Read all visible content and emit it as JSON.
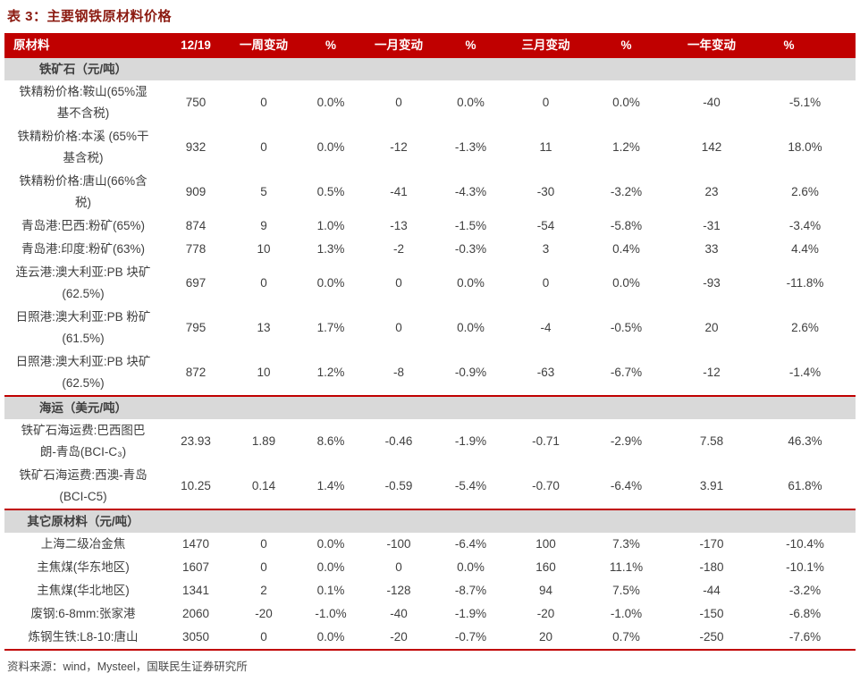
{
  "title": "表 3：主要钢铁原材料价格",
  "colors": {
    "header_red": "#C00000",
    "section_band_gray": "#D9D9D9",
    "title_dark_red": "#8B1A10",
    "body_text": "#404040"
  },
  "table": {
    "columns": [
      "原材料",
      "12/19",
      "一周变动",
      "%",
      "一月变动",
      "%",
      "三月变动",
      "%",
      "一年变动",
      "%"
    ],
    "sections": [
      {
        "name": "铁矿石（元/吨）",
        "rows": [
          {
            "label": "铁精粉价格:鞍山(65%湿\n基不含税)",
            "values": [
              "750",
              "0",
              "0.0%",
              "0",
              "0.0%",
              "0",
              "0.0%",
              "-40",
              "-5.1%"
            ]
          },
          {
            "label": "铁精粉价格:本溪 (65%干\n基含税)",
            "values": [
              "932",
              "0",
              "0.0%",
              "-12",
              "-1.3%",
              "11",
              "1.2%",
              "142",
              "18.0%"
            ]
          },
          {
            "label": "铁精粉价格:唐山(66%含\n税)",
            "values": [
              "909",
              "5",
              "0.5%",
              "-41",
              "-4.3%",
              "-30",
              "-3.2%",
              "23",
              "2.6%"
            ]
          },
          {
            "label": "青岛港:巴西:粉矿(65%)",
            "values": [
              "874",
              "9",
              "1.0%",
              "-13",
              "-1.5%",
              "-54",
              "-5.8%",
              "-31",
              "-3.4%"
            ]
          },
          {
            "label": "青岛港:印度:粉矿(63%)",
            "values": [
              "778",
              "10",
              "1.3%",
              "-2",
              "-0.3%",
              "3",
              "0.4%",
              "33",
              "4.4%"
            ]
          },
          {
            "label": "连云港:澳大利亚:PB 块矿\n(62.5%)",
            "values": [
              "697",
              "0",
              "0.0%",
              "0",
              "0.0%",
              "0",
              "0.0%",
              "-93",
              "-11.8%"
            ]
          },
          {
            "label": "日照港:澳大利亚:PB 粉矿\n(61.5%)",
            "values": [
              "795",
              "13",
              "1.7%",
              "0",
              "0.0%",
              "-4",
              "-0.5%",
              "20",
              "2.6%"
            ]
          },
          {
            "label": "日照港:澳大利亚:PB 块矿\n(62.5%)",
            "values": [
              "872",
              "10",
              "1.2%",
              "-8",
              "-0.9%",
              "-63",
              "-6.7%",
              "-12",
              "-1.4%"
            ]
          }
        ]
      },
      {
        "name": "海运（美元/吨）",
        "rows": [
          {
            "label": "铁矿石海运费:巴西图巴\n朗-青岛(BCI-C₃)",
            "values": [
              "23.93",
              "1.89",
              "8.6%",
              "-0.46",
              "-1.9%",
              "-0.71",
              "-2.9%",
              "7.58",
              "46.3%"
            ]
          },
          {
            "label": "铁矿石海运费:西澳-青岛\n(BCI-C5)",
            "values": [
              "10.25",
              "0.14",
              "1.4%",
              "-0.59",
              "-5.4%",
              "-0.70",
              "-6.4%",
              "3.91",
              "61.8%"
            ]
          }
        ]
      },
      {
        "name": "其它原材料（元/吨）",
        "rows": [
          {
            "label": "上海二级冶金焦",
            "values": [
              "1470",
              "0",
              "0.0%",
              "-100",
              "-6.4%",
              "100",
              "7.3%",
              "-170",
              "-10.4%"
            ]
          },
          {
            "label": "主焦煤(华东地区)",
            "values": [
              "1607",
              "0",
              "0.0%",
              "0",
              "0.0%",
              "160",
              "11.1%",
              "-180",
              "-10.1%"
            ]
          },
          {
            "label": "主焦煤(华北地区)",
            "values": [
              "1341",
              "2",
              "0.1%",
              "-128",
              "-8.7%",
              "94",
              "7.5%",
              "-44",
              "-3.2%"
            ]
          },
          {
            "label": "废钢:6-8mm:张家港",
            "values": [
              "2060",
              "-20",
              "-1.0%",
              "-40",
              "-1.9%",
              "-20",
              "-1.0%",
              "-150",
              "-6.8%"
            ]
          },
          {
            "label": "炼钢生铁:L8-10:唐山",
            "values": [
              "3050",
              "0",
              "0.0%",
              "-20",
              "-0.7%",
              "20",
              "0.7%",
              "-250",
              "-7.6%"
            ]
          }
        ]
      }
    ]
  },
  "footer": {
    "source": "资料来源：wind，Mysteel，国联民生证券研究所"
  }
}
